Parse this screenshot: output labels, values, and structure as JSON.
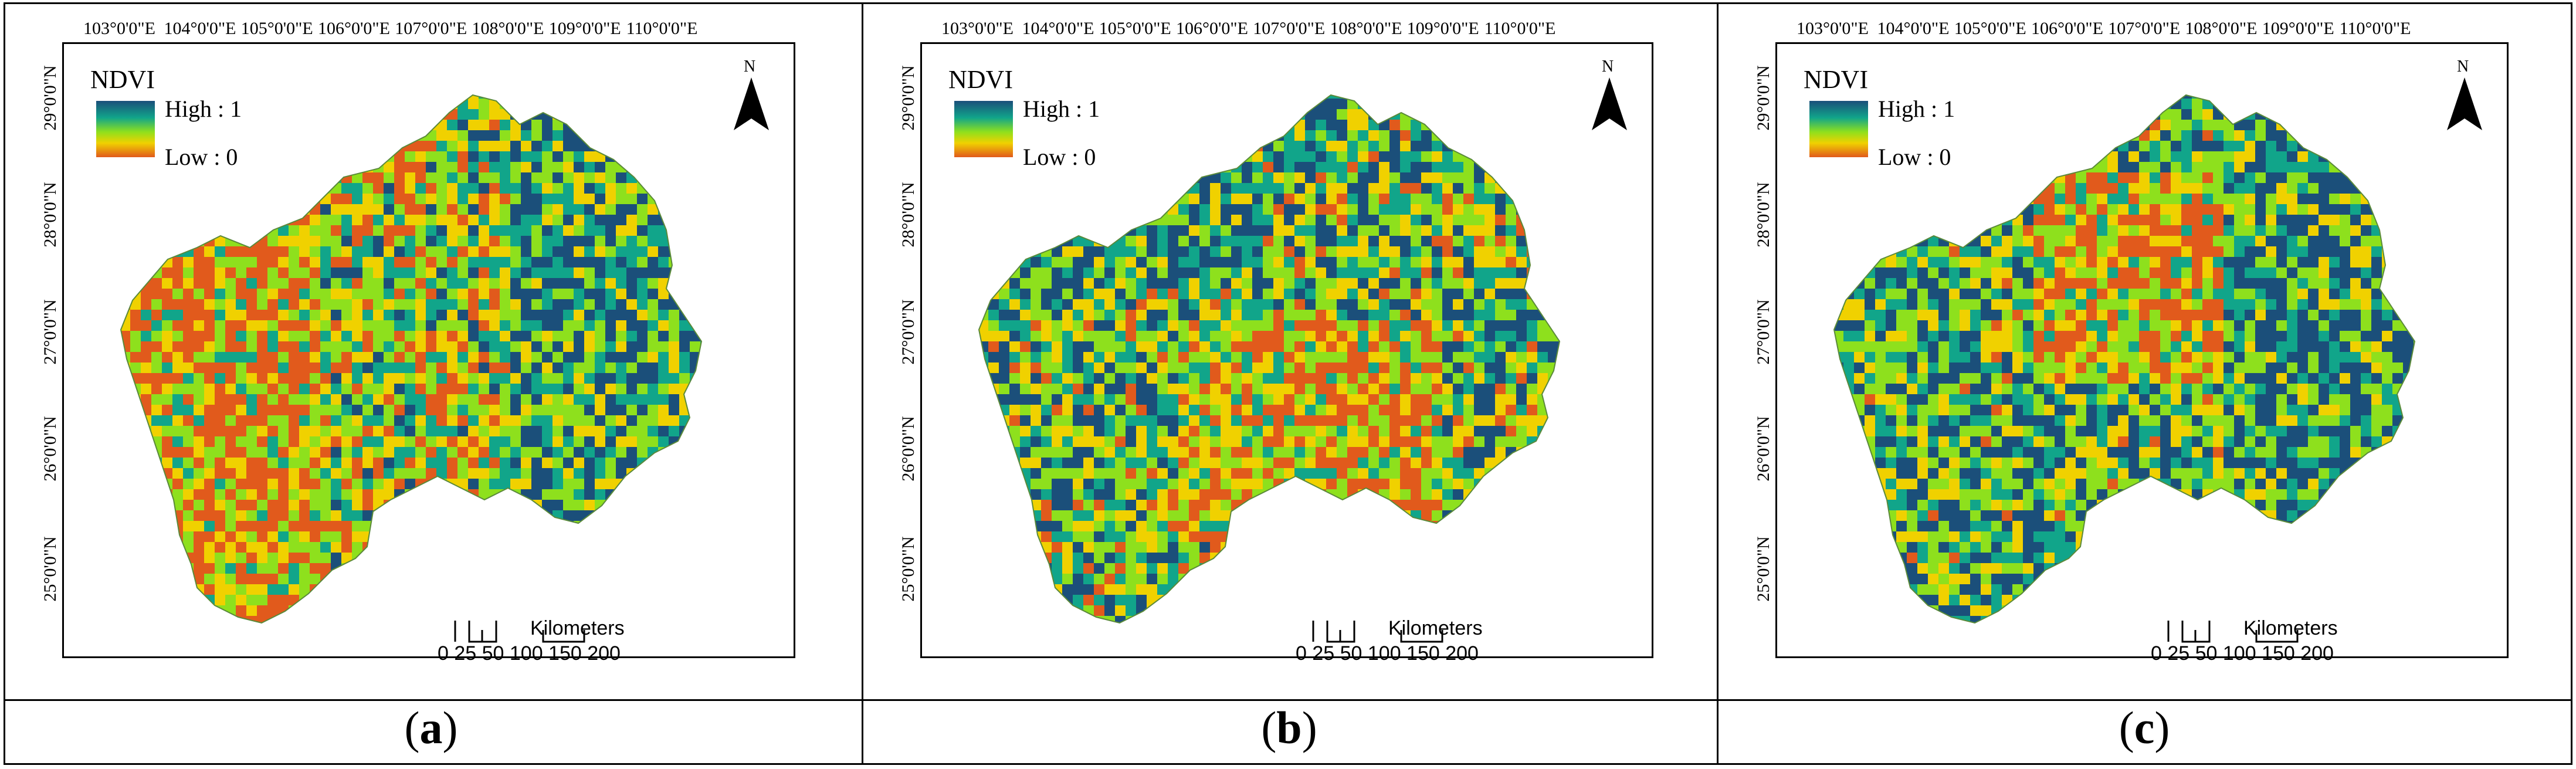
{
  "figure": {
    "panels": [
      {
        "caption_open": "(",
        "caption_letter": "a",
        "caption_close": ")",
        "legend_title": "NDVI",
        "legend_high": "High : 1",
        "legend_low": "Low : 0",
        "north_label": "N",
        "scale_units": "Kilometers",
        "scale_numbers": "0 25 50    100   150   200",
        "dominant": "mixed, orange/red in west"
      },
      {
        "caption_open": "(",
        "caption_letter": "b",
        "caption_close": ")",
        "legend_title": "NDVI",
        "legend_high": "High : 1",
        "legend_low": "Low : 0",
        "north_label": "N",
        "scale_units": "Kilometers",
        "scale_numbers": "0 25 50    100   150   200",
        "dominant": "green/teal, orange in center"
      },
      {
        "caption_open": "(",
        "caption_letter": "c",
        "caption_close": ")",
        "legend_title": "NDVI",
        "legend_high": "High : 1",
        "legend_low": "Low : 0",
        "north_label": "N",
        "scale_units": "Kilometers",
        "scale_numbers": "0 25 50    100   150   200",
        "dominant": "teal/green, orange in north-center"
      }
    ],
    "lon_labels": [
      "103°0'0\"E",
      "104°0'0\"E",
      "105°0'0\"E",
      "106°0'0\"E",
      "107°0'0\"E",
      "108°0'0\"E",
      "109°0'0\"E",
      "110°0'0\"E"
    ],
    "lat_labels": [
      "29°0'0\"N",
      "28°0'0\"N",
      "27°0'0\"N",
      "26°0'0\"N",
      "25°0'0\"N"
    ],
    "colors": {
      "high": "#1b4f7a",
      "mid_high": "#11a58a",
      "mid": "#8ee01d",
      "mid_low": "#f0d100",
      "low": "#e15a1c"
    }
  }
}
